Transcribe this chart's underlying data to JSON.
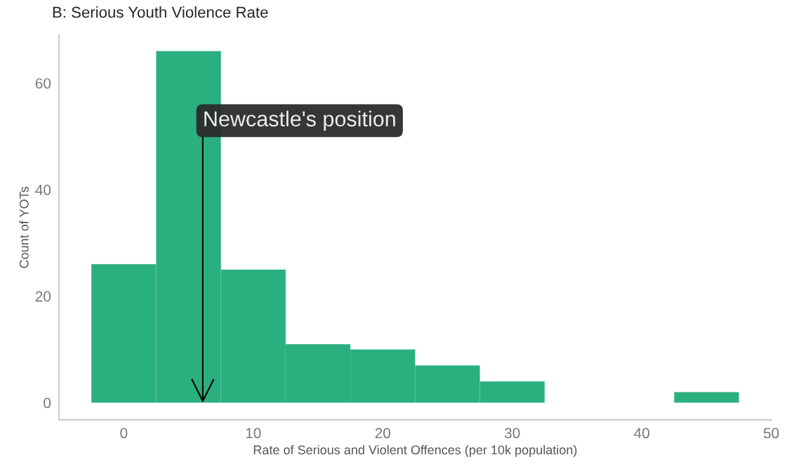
{
  "chart_data": {
    "type": "histogram",
    "title": "B: Serious Youth Violence Rate",
    "xlabel": "Rate of Serious and Violent Offences (per 10k population)",
    "ylabel": "Count of YOTs",
    "bins": [
      -2.5,
      2.5,
      7.5,
      12.5,
      17.5,
      22.5,
      27.5,
      32.5,
      37.5,
      42.5,
      47.5
    ],
    "values": [
      26,
      66,
      25,
      11,
      10,
      7,
      4,
      0,
      0,
      2
    ],
    "color": "#2ab07f",
    "xlim": [
      -5,
      50
    ],
    "ylim": [
      -3.2,
      69
    ],
    "xticks": [
      0,
      10,
      20,
      30,
      40,
      50
    ],
    "yticks": [
      0,
      20,
      40,
      60
    ],
    "grid": false,
    "annotations": [
      {
        "text": "Newcastle's position",
        "x": 6.1,
        "y": 0
      }
    ]
  }
}
